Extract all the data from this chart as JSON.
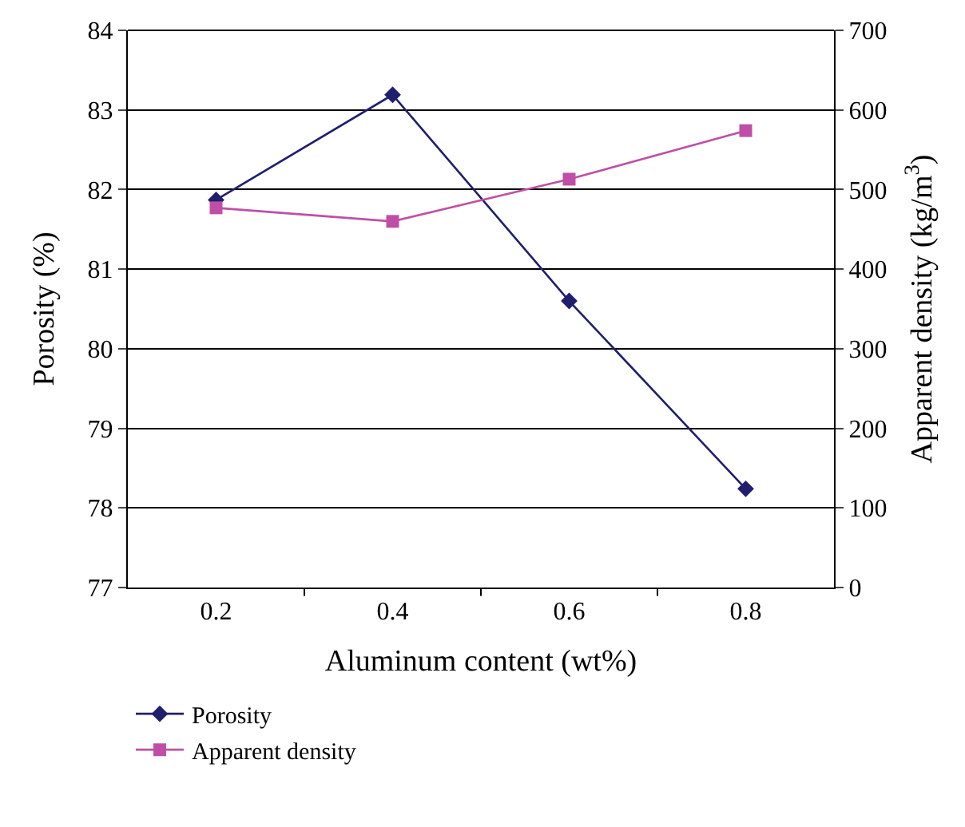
{
  "chart_data": {
    "type": "line",
    "xlabel": "Aluminum content (wt%)",
    "ylabel": "Porosity (%)",
    "y2label": "Apparent density (kg/m$^{3}$)",
    "categories": [
      "0.2",
      "0.4",
      "0.6",
      "0.8"
    ],
    "series": [
      {
        "name": "Porosity",
        "color": "#1f1f6e",
        "marker": "diamond",
        "values": [
          81.87,
          83.19,
          80.6,
          78.24
        ]
      },
      {
        "name": "Apparent density",
        "color": "#bf4fa6",
        "marker": "square",
        "axis": "y2",
        "values": [
          477,
          460,
          513,
          574
        ]
      }
    ],
    "ylim": [
      77,
      84
    ],
    "yticks": [
      77,
      78,
      79,
      80,
      81,
      82,
      83,
      84
    ],
    "y2lim": [
      0,
      700
    ],
    "y2ticks": [
      0,
      100,
      200,
      300,
      400,
      500,
      600,
      700
    ],
    "grid": "y",
    "legend": "bottom left",
    "line_style": "solid"
  }
}
